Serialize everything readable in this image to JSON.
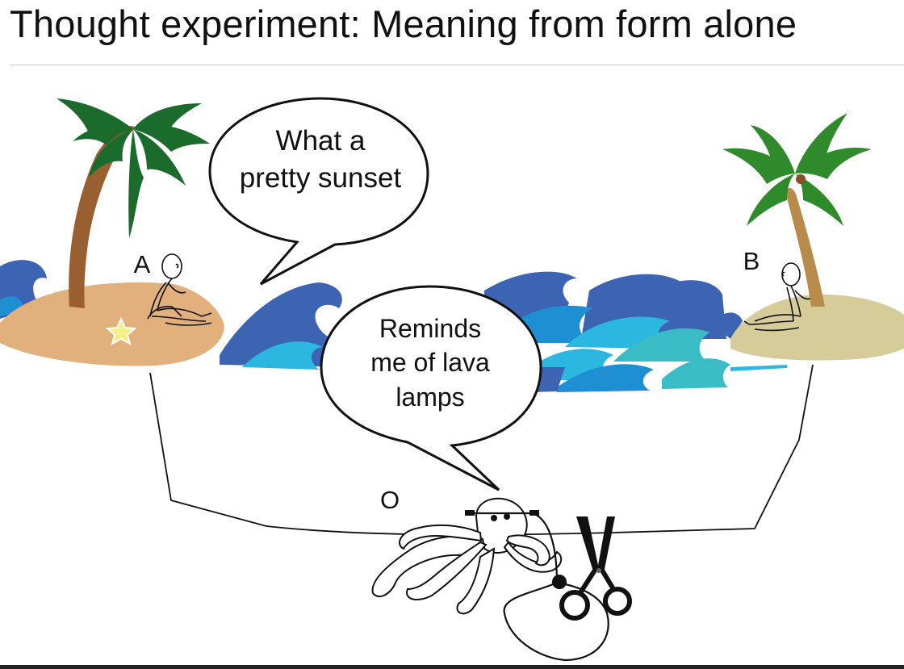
{
  "title": "Thought experiment: Meaning from form alone",
  "labels": {
    "a": "A",
    "b": "B",
    "o": "O"
  },
  "bubbles": {
    "top": [
      "What a",
      "pretty sunset"
    ],
    "middle": [
      "Reminds",
      "me of lava",
      "lamps"
    ]
  },
  "icons": [
    "palm-tree-icon",
    "stick-figure-icon",
    "starfish-icon",
    "wave-icon",
    "octopus-icon",
    "scissors-icon",
    "telegraph-cable-icon"
  ],
  "colors": {
    "sand_left": "#e2b07c",
    "sand_right": "#d6cc9a",
    "palm_trunk": "#9a5f30",
    "palm_leaf": "#1a6b2c",
    "wave_dark": "#3d63b3",
    "wave_mid": "#1f8fd4",
    "wave_light": "#2bb7e0",
    "wave_teal": "#39bcc6"
  }
}
